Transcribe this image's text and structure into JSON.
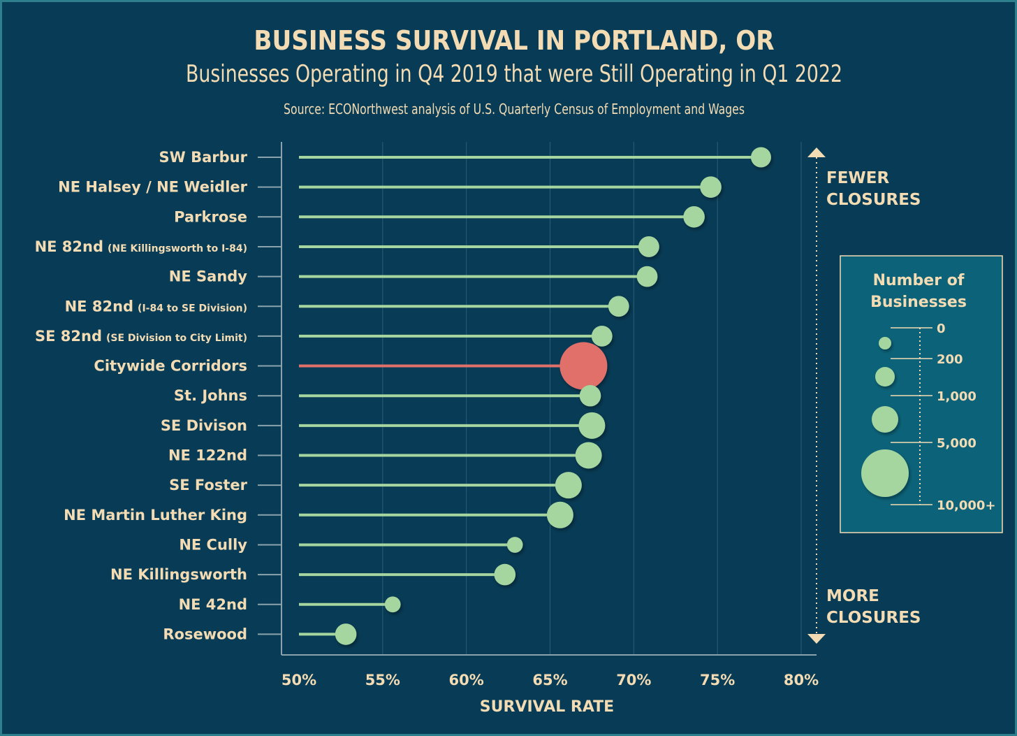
{
  "title": "BUSINESS SURVIVAL IN PORTLAND, OR",
  "subtitle": "Businesses Operating in Q4 2019 that were Still Operating in Q1 2022",
  "source": "Source: ECONorthwest analysis of U.S. Quarterly Census of Employment and Wages",
  "arrow_labels": {
    "top_line1": "FEWER",
    "top_line2": "CLOSURES",
    "bottom_line1": "MORE",
    "bottom_line2": "CLOSURES"
  },
  "legend": {
    "title_line1": "Number of",
    "title_line2": "Businesses",
    "ticks": [
      "0",
      "200",
      "1,000",
      "5,000",
      "10,000+"
    ],
    "sample_counts": [
      200,
      1000,
      5000,
      10000
    ]
  },
  "colors": {
    "background": "#083b55",
    "dot": "#a6d6a0",
    "highlight": "#e2706a",
    "text": "#f3dcb4",
    "legend_bg": "#0c6379",
    "axis": "#8aa3ad",
    "grid": "#2b5f78"
  },
  "chart_data": {
    "type": "lollipop",
    "xlabel": "SURVIVAL RATE",
    "xlim": [
      50,
      80
    ],
    "xticks": [
      "50%",
      "55%",
      "60%",
      "65%",
      "70%",
      "75%",
      "80%"
    ],
    "xtick_values": [
      50,
      55,
      60,
      65,
      70,
      75,
      80
    ],
    "grid": true,
    "rows": [
      {
        "label": "SW Barbur",
        "note": "",
        "value": 77.6,
        "businesses": 500,
        "highlight": false
      },
      {
        "label": "NE Halsey / NE Weidler",
        "note": "",
        "value": 74.6,
        "businesses": 600,
        "highlight": false
      },
      {
        "label": "Parkrose",
        "note": "",
        "value": 73.6,
        "businesses": 600,
        "highlight": false
      },
      {
        "label": "NE 82nd",
        "note": "(NE Killingsworth to I-84)",
        "value": 70.9,
        "businesses": 550,
        "highlight": false
      },
      {
        "label": "NE Sandy",
        "note": "",
        "value": 70.8,
        "businesses": 550,
        "highlight": false
      },
      {
        "label": "NE 82nd",
        "note": "(I-84 to SE Division)",
        "value": 69.1,
        "businesses": 550,
        "highlight": false
      },
      {
        "label": "SE 82nd",
        "note": "(SE Division to City Limit)",
        "value": 68.1,
        "businesses": 550,
        "highlight": false
      },
      {
        "label": "Citywide Corridors",
        "note": "",
        "value": 67.0,
        "businesses": 10000,
        "highlight": true
      },
      {
        "label": "St. Johns",
        "note": "",
        "value": 67.4,
        "businesses": 600,
        "highlight": false
      },
      {
        "label": "SE Divison",
        "note": "",
        "value": 67.5,
        "businesses": 1200,
        "highlight": false
      },
      {
        "label": "NE 122nd",
        "note": "",
        "value": 67.3,
        "businesses": 1100,
        "highlight": false
      },
      {
        "label": "SE Foster",
        "note": "",
        "value": 66.1,
        "businesses": 1100,
        "highlight": false
      },
      {
        "label": "NE Martin Luther King",
        "note": "",
        "value": 65.6,
        "businesses": 1100,
        "highlight": false
      },
      {
        "label": "NE Cully",
        "note": "",
        "value": 62.9,
        "businesses": 200,
        "highlight": false
      },
      {
        "label": "NE Killingsworth",
        "note": "",
        "value": 62.3,
        "businesses": 600,
        "highlight": false
      },
      {
        "label": "NE 42nd",
        "note": "",
        "value": 55.6,
        "businesses": 200,
        "highlight": false
      },
      {
        "label": "Rosewood",
        "note": "",
        "value": 52.8,
        "businesses": 600,
        "highlight": false
      }
    ]
  }
}
